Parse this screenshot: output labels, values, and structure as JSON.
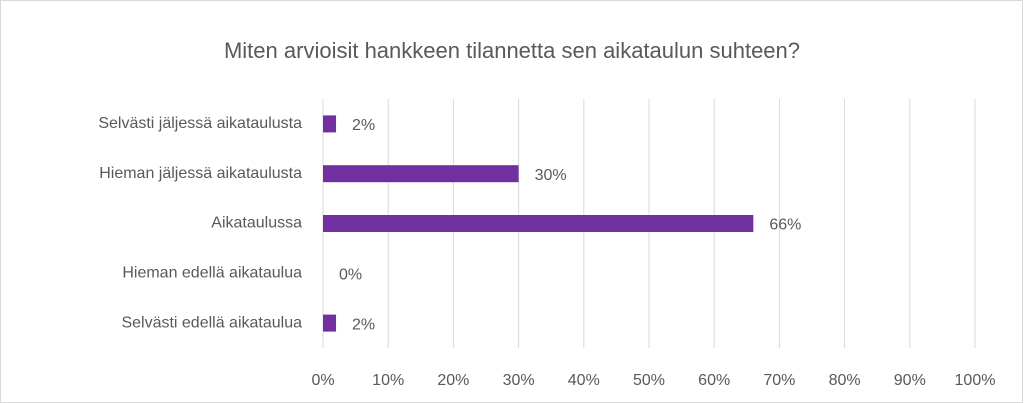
{
  "chart_data": {
    "type": "bar",
    "orientation": "horizontal",
    "title": "Miten arvioisit hankkeen tilannetta sen aikataulun suhteen?",
    "categories": [
      "Selvästi jäljessä aikataulusta",
      "Hieman jäljessä aikataulusta",
      "Aikataulussa",
      "Hieman edellä aikataulua",
      "Selvästi edellä aikataulua"
    ],
    "values": [
      2,
      30,
      66,
      0,
      2
    ],
    "value_labels": [
      "2%",
      "30%",
      "66%",
      "0%",
      "2%"
    ],
    "color": "#7030a0",
    "xlim": [
      0,
      100
    ],
    "xticks": [
      {
        "value": 0,
        "label": "0%"
      },
      {
        "value": 10,
        "label": "10%"
      },
      {
        "value": 20,
        "label": "20%"
      },
      {
        "value": 30,
        "label": "30%"
      },
      {
        "value": 40,
        "label": "40%"
      },
      {
        "value": 50,
        "label": "50%"
      },
      {
        "value": 60,
        "label": "60%"
      },
      {
        "value": 70,
        "label": "70%"
      },
      {
        "value": 80,
        "label": "80%"
      },
      {
        "value": 90,
        "label": "90%"
      },
      {
        "value": 100,
        "label": "100%"
      }
    ],
    "grid": true
  }
}
